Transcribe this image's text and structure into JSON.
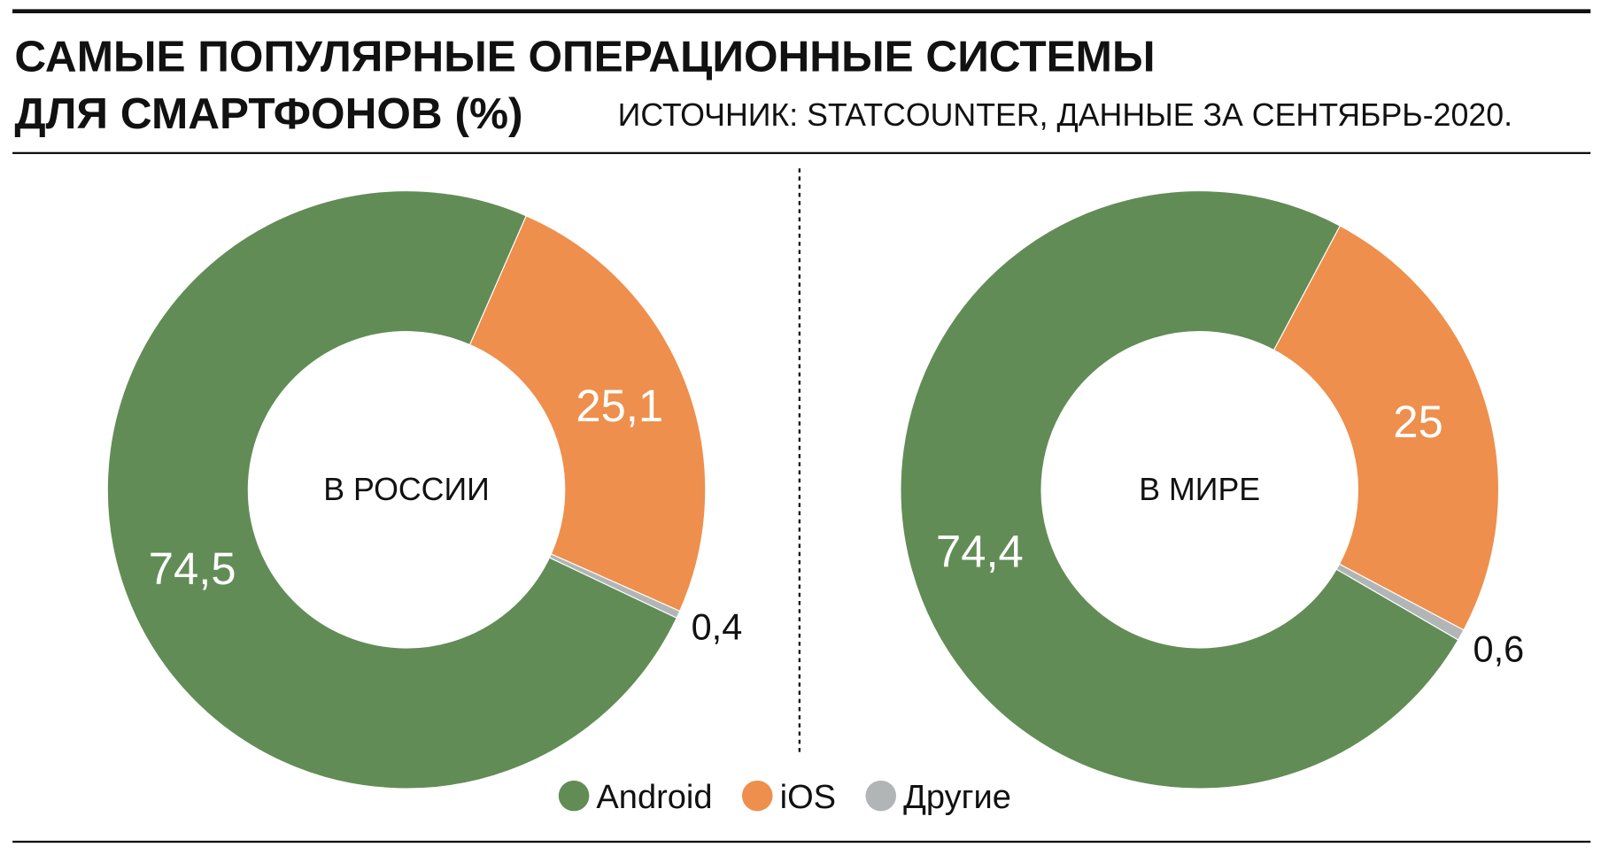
{
  "header": {
    "title_lines": [
      "САМЫЕ ПОПУЛЯРНЫЕ ОПЕРАЦИОННЫЕ СИСТЕМЫ",
      "ДЛЯ СМАРТФОНОВ (%)"
    ],
    "source": "ИСТОЧНИК: STATCOUNTER, ДАННЫЕ ЗА СЕНТЯБРЬ-2020."
  },
  "chart_data": [
    {
      "type": "donut",
      "label": "В РОССИИ",
      "categories": [
        "Android",
        "iOS",
        "Другие"
      ],
      "values": [
        74.5,
        25.1,
        0.4
      ],
      "value_labels": [
        "74,5",
        "25,1",
        "0,4"
      ],
      "colors": [
        "#628c56",
        "#ee8f4d",
        "#b1b5b6"
      ]
    },
    {
      "type": "donut",
      "label": "В МИРЕ",
      "categories": [
        "Android",
        "iOS",
        "Другие"
      ],
      "values": [
        74.4,
        25,
        0.6
      ],
      "value_labels": [
        "74,4",
        "25",
        "0,6"
      ],
      "colors": [
        "#628c56",
        "#ee8f4d",
        "#b1b5b6"
      ]
    }
  ]
}
